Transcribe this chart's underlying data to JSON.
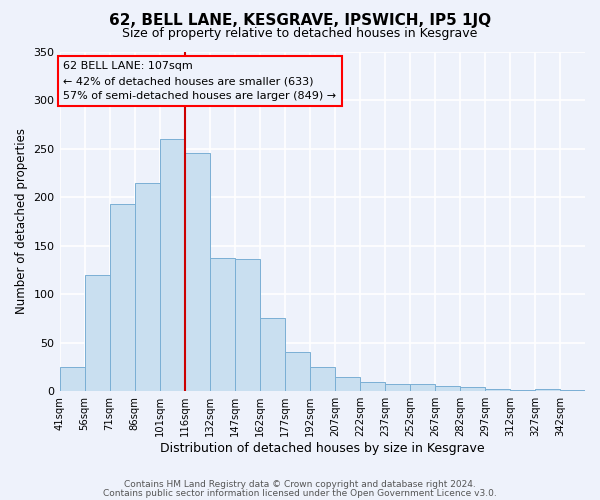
{
  "title": "62, BELL LANE, KESGRAVE, IPSWICH, IP5 1JQ",
  "subtitle": "Size of property relative to detached houses in Kesgrave",
  "xlabel": "Distribution of detached houses by size in Kesgrave",
  "ylabel": "Number of detached properties",
  "bar_labels": [
    "41sqm",
    "56sqm",
    "71sqm",
    "86sqm",
    "101sqm",
    "116sqm",
    "132sqm",
    "147sqm",
    "162sqm",
    "177sqm",
    "192sqm",
    "207sqm",
    "222sqm",
    "237sqm",
    "252sqm",
    "267sqm",
    "282sqm",
    "297sqm",
    "312sqm",
    "327sqm",
    "342sqm"
  ],
  "bar_values": [
    25,
    120,
    193,
    215,
    260,
    245,
    137,
    136,
    75,
    40,
    25,
    15,
    10,
    7,
    7,
    5,
    4,
    2,
    1,
    2,
    1
  ],
  "bar_color": "#c9dff0",
  "bar_edge_color": "#7aafd4",
  "background_color": "#eef2fb",
  "grid_color": "#ffffff",
  "vline_color": "#cc0000",
  "ylim": [
    0,
    350
  ],
  "yticks": [
    0,
    50,
    100,
    150,
    200,
    250,
    300,
    350
  ],
  "vline_bar_index": 4,
  "annotation_title": "62 BELL LANE: 107sqm",
  "annotation_line1": "← 42% of detached houses are smaller (633)",
  "annotation_line2": "57% of semi-detached houses are larger (849) →",
  "footer1": "Contains HM Land Registry data © Crown copyright and database right 2024.",
  "footer2": "Contains public sector information licensed under the Open Government Licence v3.0."
}
